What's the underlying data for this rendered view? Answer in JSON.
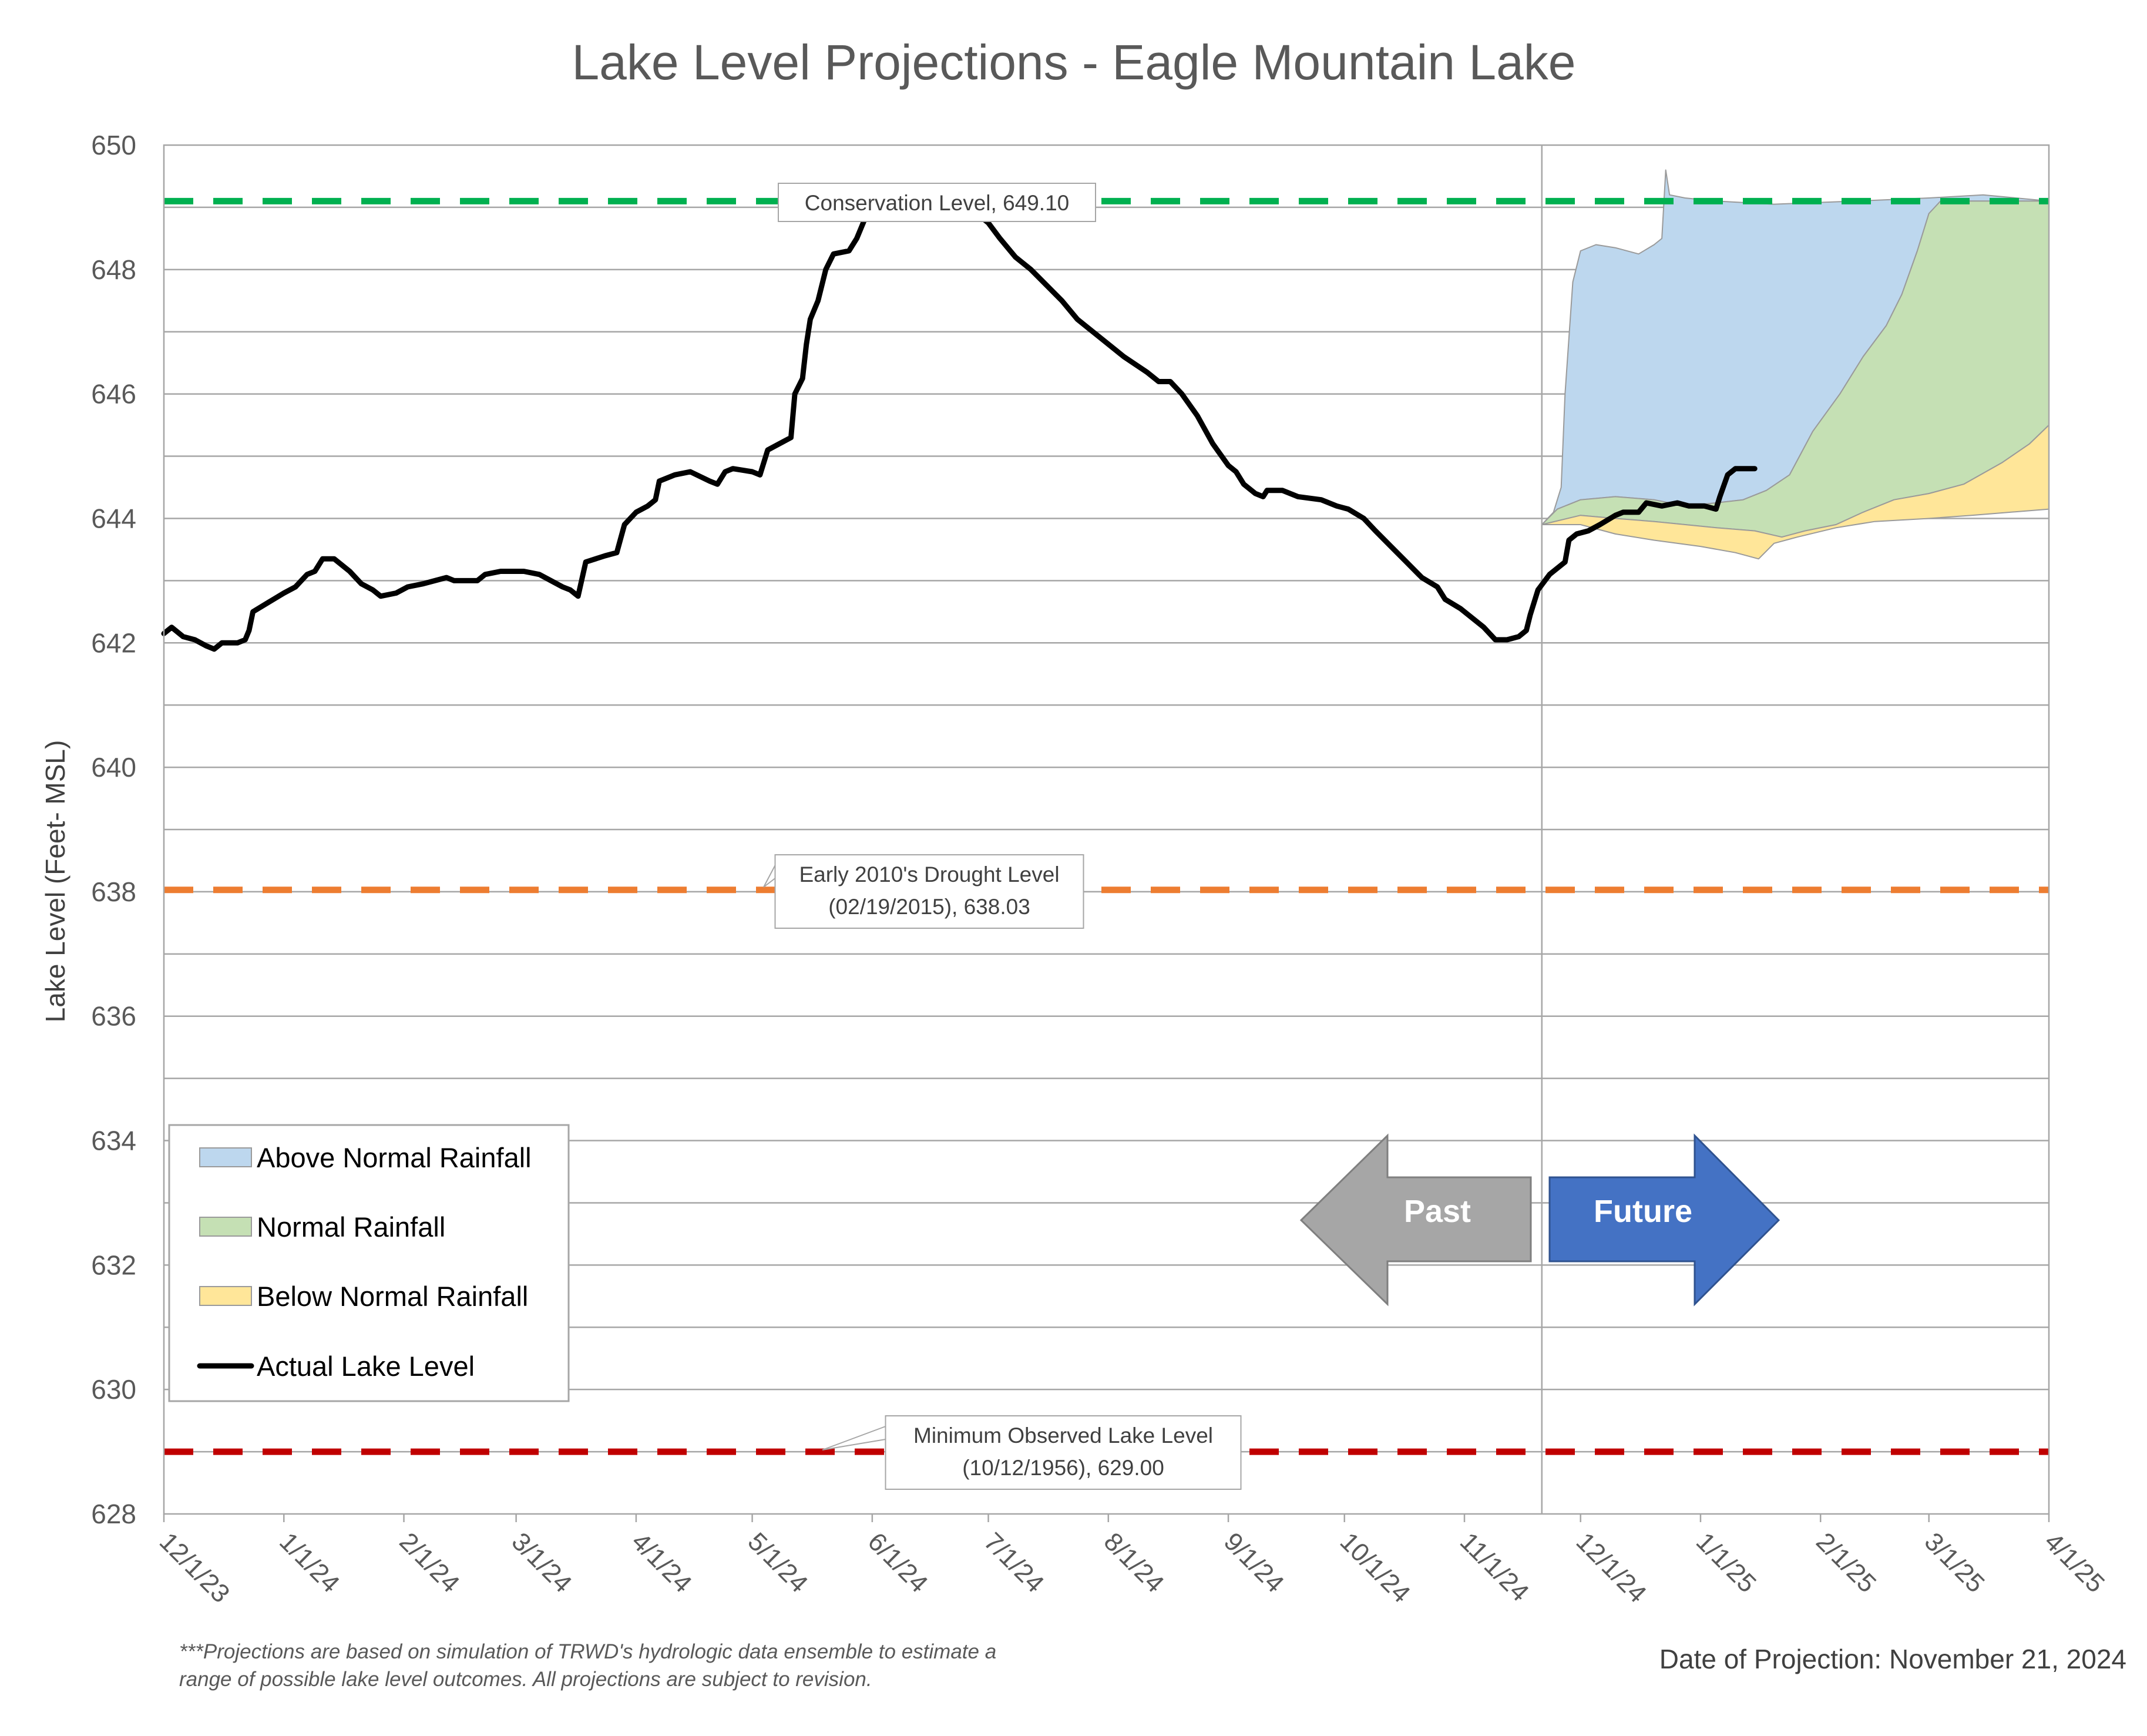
{
  "chart_data": {
    "type": "area",
    "title": "Lake Level Projections - Eagle Mountain Lake",
    "ylabel": "Lake Level (Feet- MSL)",
    "xlabel": "",
    "ylim": [
      628,
      650
    ],
    "y_ticks": [
      "628",
      "630",
      "632",
      "634",
      "636",
      "638",
      "640",
      "642",
      "644",
      "646",
      "648",
      "650"
    ],
    "x_ticks": [
      "12/1/23",
      "1/1/24",
      "2/1/24",
      "3/1/24",
      "4/1/24",
      "5/1/24",
      "6/1/24",
      "7/1/24",
      "8/1/24",
      "9/1/24",
      "10/1/24",
      "11/1/24",
      "12/1/24",
      "1/1/25",
      "2/1/25",
      "3/1/25",
      "4/1/25"
    ],
    "x_tick_dates": [
      "2023-12-01",
      "2024-01-01",
      "2024-02-01",
      "2024-03-01",
      "2024-04-01",
      "2024-05-01",
      "2024-06-01",
      "2024-07-01",
      "2024-08-01",
      "2024-09-01",
      "2024-10-01",
      "2024-11-01",
      "2024-12-01",
      "2025-01-01",
      "2025-02-01",
      "2025-03-01",
      "2025-04-01"
    ],
    "xlim": [
      "2023-12-01",
      "2025-04-01"
    ],
    "grid": "horizontal",
    "projection_date": "2024-11-21",
    "reference_lines": [
      {
        "name": "Conservation Level",
        "value": 649.1,
        "color": "#00b050",
        "label_lines": [
          "Conservation Level, 649.10"
        ]
      },
      {
        "name": "Early 2010's Drought Level",
        "value": 638.03,
        "color": "#ed7d31",
        "label_lines": [
          "Early 2010's Drought Level",
          "(02/19/2015), 638.03"
        ]
      },
      {
        "name": "Minimum Observed Lake Level",
        "value": 629.0,
        "color": "#c00000",
        "label_lines": [
          "Minimum Observed Lake Level",
          "(10/12/1956), 629.00"
        ]
      }
    ],
    "series": [
      {
        "name": "Above Normal Rainfall",
        "kind": "area",
        "color": "#bdd7ee",
        "upper": [
          [
            "2024-11-21",
            643.9
          ],
          [
            "2024-11-24",
            644.1
          ],
          [
            "2024-11-26",
            644.5
          ],
          [
            "2024-11-27",
            646.0
          ],
          [
            "2024-11-29",
            647.8
          ],
          [
            "2024-12-01",
            648.3
          ],
          [
            "2024-12-05",
            648.4
          ],
          [
            "2024-12-10",
            648.35
          ],
          [
            "2024-12-16",
            648.25
          ],
          [
            "2024-12-20",
            648.4
          ],
          [
            "2024-12-22",
            648.5
          ],
          [
            "2024-12-23",
            649.6
          ],
          [
            "2024-12-24",
            649.2
          ],
          [
            "2024-12-28",
            649.15
          ],
          [
            "2025-01-05",
            649.1
          ],
          [
            "2025-01-20",
            649.05
          ],
          [
            "2025-02-10",
            649.1
          ],
          [
            "2025-03-01",
            649.15
          ],
          [
            "2025-03-15",
            649.2
          ],
          [
            "2025-04-01",
            649.1
          ]
        ],
        "lower": [
          [
            "2024-11-21",
            643.9
          ],
          [
            "2024-11-25",
            644.15
          ],
          [
            "2024-12-01",
            644.3
          ],
          [
            "2024-12-10",
            644.35
          ],
          [
            "2024-12-20",
            644.3
          ],
          [
            "2024-12-28",
            644.2
          ],
          [
            "2025-01-05",
            644.25
          ],
          [
            "2025-01-12",
            644.3
          ],
          [
            "2025-01-18",
            644.45
          ],
          [
            "2025-01-24",
            644.7
          ],
          [
            "2025-01-30",
            645.4
          ],
          [
            "2025-02-06",
            646.0
          ],
          [
            "2025-02-12",
            646.6
          ],
          [
            "2025-02-18",
            647.1
          ],
          [
            "2025-02-22",
            647.6
          ],
          [
            "2025-02-26",
            648.3
          ],
          [
            "2025-03-01",
            648.9
          ],
          [
            "2025-03-04",
            649.1
          ]
        ]
      },
      {
        "name": "Normal Rainfall",
        "kind": "area",
        "color": "#c5e0b4",
        "upper": [
          [
            "2024-11-21",
            643.9
          ],
          [
            "2024-11-25",
            644.15
          ],
          [
            "2024-12-01",
            644.3
          ],
          [
            "2024-12-10",
            644.35
          ],
          [
            "2024-12-20",
            644.3
          ],
          [
            "2024-12-28",
            644.2
          ],
          [
            "2025-01-05",
            644.25
          ],
          [
            "2025-01-12",
            644.3
          ],
          [
            "2025-01-18",
            644.45
          ],
          [
            "2025-01-24",
            644.7
          ],
          [
            "2025-01-30",
            645.4
          ],
          [
            "2025-02-06",
            646.0
          ],
          [
            "2025-02-12",
            646.6
          ],
          [
            "2025-02-18",
            647.1
          ],
          [
            "2025-02-22",
            647.6
          ],
          [
            "2025-02-26",
            648.3
          ],
          [
            "2025-03-01",
            648.9
          ],
          [
            "2025-03-04",
            649.1
          ],
          [
            "2025-03-20",
            649.1
          ],
          [
            "2025-04-01",
            649.1
          ]
        ],
        "lower": [
          [
            "2024-11-21",
            643.9
          ],
          [
            "2024-12-01",
            644.05
          ],
          [
            "2024-12-10",
            644.0
          ],
          [
            "2024-12-20",
            643.95
          ],
          [
            "2024-12-28",
            643.9
          ],
          [
            "2025-01-05",
            643.85
          ],
          [
            "2025-01-15",
            643.8
          ],
          [
            "2025-01-22",
            643.7
          ],
          [
            "2025-01-28",
            643.8
          ],
          [
            "2025-02-05",
            643.9
          ],
          [
            "2025-02-12",
            644.1
          ],
          [
            "2025-02-20",
            644.3
          ],
          [
            "2025-03-01",
            644.4
          ],
          [
            "2025-03-10",
            644.55
          ],
          [
            "2025-03-20",
            644.9
          ],
          [
            "2025-03-27",
            645.2
          ],
          [
            "2025-04-01",
            645.5
          ]
        ]
      },
      {
        "name": "Below Normal Rainfall",
        "kind": "area",
        "color": "#ffe699",
        "upper": [
          [
            "2024-11-21",
            643.9
          ],
          [
            "2024-12-01",
            644.05
          ],
          [
            "2024-12-10",
            644.0
          ],
          [
            "2024-12-20",
            643.95
          ],
          [
            "2024-12-28",
            643.9
          ],
          [
            "2025-01-05",
            643.85
          ],
          [
            "2025-01-15",
            643.8
          ],
          [
            "2025-01-22",
            643.7
          ],
          [
            "2025-01-28",
            643.8
          ],
          [
            "2025-02-05",
            643.9
          ],
          [
            "2025-02-12",
            644.1
          ],
          [
            "2025-02-20",
            644.3
          ],
          [
            "2025-03-01",
            644.4
          ],
          [
            "2025-03-10",
            644.55
          ],
          [
            "2025-03-20",
            644.9
          ],
          [
            "2025-03-27",
            645.2
          ],
          [
            "2025-04-01",
            645.5
          ]
        ],
        "lower": [
          [
            "2024-11-21",
            643.9
          ],
          [
            "2024-12-01",
            643.9
          ],
          [
            "2024-12-10",
            643.75
          ],
          [
            "2024-12-20",
            643.65
          ],
          [
            "2025-01-01",
            643.55
          ],
          [
            "2025-01-10",
            643.45
          ],
          [
            "2025-01-16",
            643.35
          ],
          [
            "2025-01-20",
            643.6
          ],
          [
            "2025-01-26",
            643.7
          ],
          [
            "2025-02-05",
            643.85
          ],
          [
            "2025-02-15",
            643.95
          ],
          [
            "2025-03-01",
            644.0
          ],
          [
            "2025-03-12",
            644.05
          ],
          [
            "2025-03-22",
            644.1
          ],
          [
            "2025-04-01",
            644.15
          ]
        ]
      },
      {
        "name": "Actual Lake Level",
        "kind": "line",
        "color": "#000000",
        "points": [
          [
            "2023-12-01",
            642.15
          ],
          [
            "2023-12-03",
            642.25
          ],
          [
            "2023-12-06",
            642.1
          ],
          [
            "2023-12-09",
            642.05
          ],
          [
            "2023-12-12",
            641.95
          ],
          [
            "2023-12-14",
            641.9
          ],
          [
            "2023-12-16",
            642.0
          ],
          [
            "2023-12-20",
            642.0
          ],
          [
            "2023-12-22",
            642.05
          ],
          [
            "2023-12-23",
            642.2
          ],
          [
            "2023-12-24",
            642.5
          ],
          [
            "2023-12-28",
            642.65
          ],
          [
            "2024-01-01",
            642.8
          ],
          [
            "2024-01-04",
            642.9
          ],
          [
            "2024-01-07",
            643.1
          ],
          [
            "2024-01-09",
            643.15
          ],
          [
            "2024-01-11",
            643.35
          ],
          [
            "2024-01-14",
            643.35
          ],
          [
            "2024-01-18",
            643.15
          ],
          [
            "2024-01-21",
            642.95
          ],
          [
            "2024-01-24",
            642.85
          ],
          [
            "2024-01-26",
            642.75
          ],
          [
            "2024-01-30",
            642.8
          ],
          [
            "2024-02-02",
            642.9
          ],
          [
            "2024-02-06",
            642.95
          ],
          [
            "2024-02-09",
            643.0
          ],
          [
            "2024-02-12",
            643.05
          ],
          [
            "2024-02-14",
            643.0
          ],
          [
            "2024-02-20",
            643.0
          ],
          [
            "2024-02-22",
            643.1
          ],
          [
            "2024-02-26",
            643.15
          ],
          [
            "2024-03-03",
            643.15
          ],
          [
            "2024-03-07",
            643.1
          ],
          [
            "2024-03-10",
            643.0
          ],
          [
            "2024-03-13",
            642.9
          ],
          [
            "2024-03-15",
            642.85
          ],
          [
            "2024-03-17",
            642.75
          ],
          [
            "2024-03-19",
            643.3
          ],
          [
            "2024-03-24",
            643.4
          ],
          [
            "2024-03-27",
            643.45
          ],
          [
            "2024-03-29",
            643.9
          ],
          [
            "2024-04-01",
            644.1
          ],
          [
            "2024-04-04",
            644.2
          ],
          [
            "2024-04-06",
            644.3
          ],
          [
            "2024-04-07",
            644.6
          ],
          [
            "2024-04-11",
            644.7
          ],
          [
            "2024-04-15",
            644.75
          ],
          [
            "2024-04-20",
            644.6
          ],
          [
            "2024-04-22",
            644.55
          ],
          [
            "2024-04-24",
            644.75
          ],
          [
            "2024-04-26",
            644.8
          ],
          [
            "2024-05-01",
            644.75
          ],
          [
            "2024-05-03",
            644.7
          ],
          [
            "2024-05-05",
            645.1
          ],
          [
            "2024-05-08",
            645.2
          ],
          [
            "2024-05-11",
            645.3
          ],
          [
            "2024-05-12",
            646.0
          ],
          [
            "2024-05-14",
            646.25
          ],
          [
            "2024-05-15",
            646.8
          ],
          [
            "2024-05-16",
            647.2
          ],
          [
            "2024-05-18",
            647.5
          ],
          [
            "2024-05-20",
            648.0
          ],
          [
            "2024-05-22",
            648.25
          ],
          [
            "2024-05-26",
            648.3
          ],
          [
            "2024-05-28",
            648.5
          ],
          [
            "2024-05-30",
            648.8
          ],
          [
            "2024-06-02",
            648.95
          ],
          [
            "2024-06-06",
            649.0
          ],
          [
            "2024-06-11",
            649.0
          ],
          [
            "2024-06-12",
            649.25
          ],
          [
            "2024-06-16",
            649.1
          ],
          [
            "2024-06-22",
            648.95
          ],
          [
            "2024-06-28",
            648.9
          ],
          [
            "2024-07-01",
            648.75
          ],
          [
            "2024-07-04",
            648.5
          ],
          [
            "2024-07-08",
            648.2
          ],
          [
            "2024-07-12",
            648.0
          ],
          [
            "2024-07-16",
            647.75
          ],
          [
            "2024-07-20",
            647.5
          ],
          [
            "2024-07-24",
            647.2
          ],
          [
            "2024-07-30",
            646.9
          ],
          [
            "2024-08-05",
            646.6
          ],
          [
            "2024-08-11",
            646.35
          ],
          [
            "2024-08-14",
            646.2
          ],
          [
            "2024-08-17",
            646.2
          ],
          [
            "2024-08-20",
            646.0
          ],
          [
            "2024-08-24",
            645.65
          ],
          [
            "2024-08-28",
            645.2
          ],
          [
            "2024-09-01",
            644.85
          ],
          [
            "2024-09-03",
            644.75
          ],
          [
            "2024-09-05",
            644.55
          ],
          [
            "2024-09-08",
            644.4
          ],
          [
            "2024-09-10",
            644.35
          ],
          [
            "2024-09-11",
            644.45
          ],
          [
            "2024-09-15",
            644.45
          ],
          [
            "2024-09-19",
            644.35
          ],
          [
            "2024-09-25",
            644.3
          ],
          [
            "2024-09-29",
            644.2
          ],
          [
            "2024-10-02",
            644.15
          ],
          [
            "2024-10-06",
            644.0
          ],
          [
            "2024-10-09",
            643.8
          ],
          [
            "2024-10-13",
            643.55
          ],
          [
            "2024-10-17",
            643.3
          ],
          [
            "2024-10-21",
            643.05
          ],
          [
            "2024-10-25",
            642.9
          ],
          [
            "2024-10-27",
            642.7
          ],
          [
            "2024-10-31",
            642.55
          ],
          [
            "2024-11-03",
            642.4
          ],
          [
            "2024-11-06",
            642.25
          ],
          [
            "2024-11-09",
            642.05
          ],
          [
            "2024-11-12",
            642.05
          ],
          [
            "2024-11-15",
            642.1
          ],
          [
            "2024-11-17",
            642.2
          ],
          [
            "2024-11-18",
            642.45
          ],
          [
            "2024-11-20",
            642.85
          ],
          [
            "2024-11-23",
            643.1
          ],
          [
            "2024-11-27",
            643.3
          ],
          [
            "2024-11-28",
            643.65
          ],
          [
            "2024-11-30",
            643.75
          ],
          [
            "2024-12-03",
            643.8
          ],
          [
            "2024-12-06",
            643.9
          ],
          [
            "2024-12-10",
            644.05
          ],
          [
            "2024-12-12",
            644.1
          ],
          [
            "2024-12-16",
            644.1
          ],
          [
            "2024-12-18",
            644.25
          ],
          [
            "2024-12-22",
            644.2
          ],
          [
            "2024-12-26",
            644.25
          ],
          [
            "2024-12-29",
            644.2
          ],
          [
            "2025-01-02",
            644.2
          ],
          [
            "2025-01-05",
            644.15
          ],
          [
            "2025-01-06",
            644.35
          ],
          [
            "2025-01-08",
            644.7
          ],
          [
            "2025-01-10",
            644.8
          ],
          [
            "2025-01-15",
            644.8
          ]
        ]
      }
    ],
    "legend": {
      "placement": "bottom-left",
      "entries": [
        "Above Normal Rainfall",
        "Normal Rainfall",
        "Below Normal Rainfall",
        "Actual Lake Level"
      ]
    },
    "arrows": [
      {
        "label": "Past",
        "direction": "left",
        "color": "#a6a6a6"
      },
      {
        "label": "Future",
        "direction": "right",
        "color": "#4472c4"
      }
    ],
    "footnote_lines": [
      "***Projections are based on simulation of TRWD's hydrologic data ensemble to estimate a",
      "range of possible lake level outcomes.  All projections are subject to revision."
    ],
    "date_of_projection": "Date of Projection: November 21, 2024"
  }
}
